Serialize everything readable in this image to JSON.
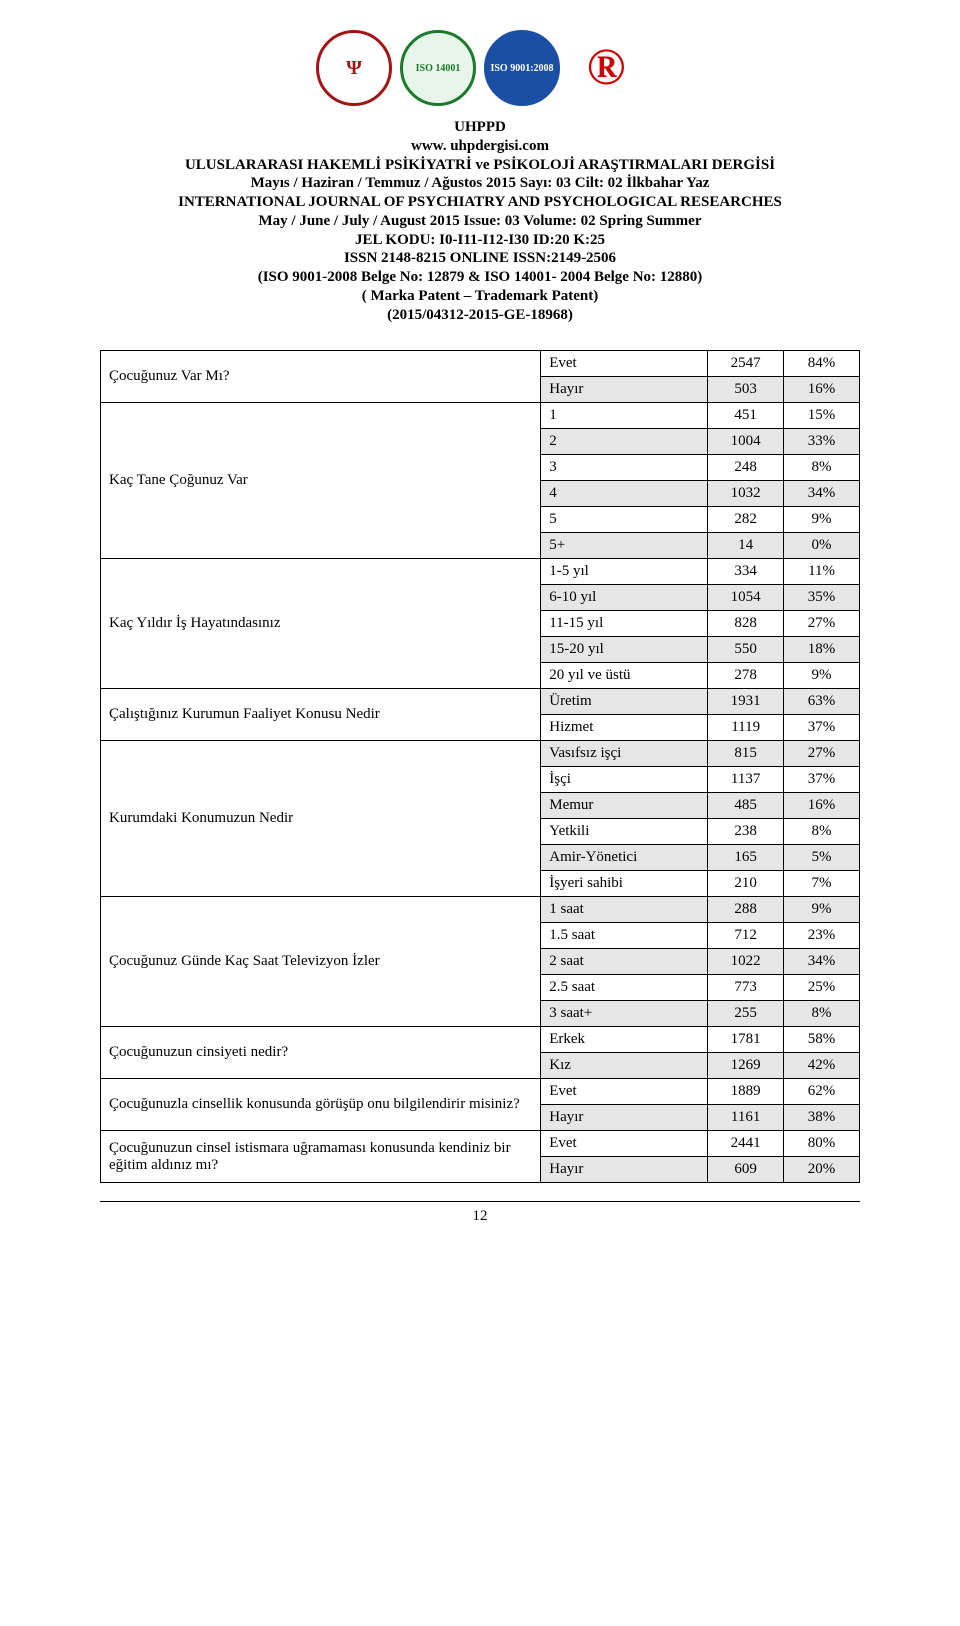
{
  "logos": {
    "uhppd": "Ψ",
    "iso14001": "ISO 14001",
    "iso9001": "ISO 9001:2008",
    "registered": "®"
  },
  "header": {
    "line1": "UHPPD",
    "line2": "www. uhpdergisi.com",
    "line3": "ULUSLARARASI HAKEMLİ PSİKİYATRİ ve PSİKOLOJİ ARAŞTIRMALARI DERGİSİ",
    "line4": "Mayıs / Haziran / Temmuz / Ağustos 2015 Sayı: 03 Cilt: 02 İlkbahar Yaz",
    "line5": "INTERNATIONAL JOURNAL OF PSYCHIATRY AND PSYCHOLOGICAL RESEARCHES",
    "line6": "May / June / July / August 2015 Issue: 03 Volume: 02 Spring Summer",
    "line7": "JEL KODU: I0-I11-I12-I30 ID:20   K:25",
    "line8": "ISSN 2148-8215 ONLINE ISSN:2149-2506",
    "line9": "(ISO 9001-2008 Belge No: 12879 & ISO 14001- 2004 Belge No: 12880)",
    "line10": "( Marka Patent – Trademark Patent)",
    "line11": "(2015/04312-2015-GE-18968)"
  },
  "table": [
    {
      "q": "Çocuğunuz Var Mı?",
      "a": "Evet",
      "n": "2547",
      "p": "84%",
      "shaded": false,
      "qspan": 2
    },
    {
      "a": "Hayır",
      "n": "503",
      "p": "16%",
      "shaded": true
    },
    {
      "q": "Kaç Tane Çoğunuz Var",
      "a": "1",
      "n": "451",
      "p": "15%",
      "shaded": false,
      "qspan": 6
    },
    {
      "a": "2",
      "n": "1004",
      "p": "33%",
      "shaded": true
    },
    {
      "a": "3",
      "n": "248",
      "p": "8%",
      "shaded": false
    },
    {
      "a": "4",
      "n": "1032",
      "p": "34%",
      "shaded": true
    },
    {
      "a": "5",
      "n": "282",
      "p": "9%",
      "shaded": false
    },
    {
      "a": "5+",
      "n": "14",
      "p": "0%",
      "shaded": true
    },
    {
      "q": "Kaç Yıldır İş Hayatındasınız",
      "a": "1-5 yıl",
      "n": "334",
      "p": "11%",
      "shaded": false,
      "qspan": 5
    },
    {
      "a": "6-10 yıl",
      "n": "1054",
      "p": "35%",
      "shaded": true
    },
    {
      "a": "11-15 yıl",
      "n": "828",
      "p": "27%",
      "shaded": false
    },
    {
      "a": "15-20 yıl",
      "n": "550",
      "p": "18%",
      "shaded": true
    },
    {
      "a": "20 yıl ve üstü",
      "n": "278",
      "p": "9%",
      "shaded": false
    },
    {
      "q": "Çalıştığınız Kurumun Faaliyet Konusu Nedir",
      "a": "Üretim",
      "n": "1931",
      "p": "63%",
      "shaded": true,
      "qspan": 2
    },
    {
      "a": "Hizmet",
      "n": "1119",
      "p": "37%",
      "shaded": false
    },
    {
      "q": "Kurumdaki Konumuzun Nedir",
      "a": "Vasıfsız işçi",
      "n": "815",
      "p": "27%",
      "shaded": true,
      "qspan": 6
    },
    {
      "a": "İşçi",
      "n": "1137",
      "p": "37%",
      "shaded": false
    },
    {
      "a": "Memur",
      "n": "485",
      "p": "16%",
      "shaded": true
    },
    {
      "a": "Yetkili",
      "n": "238",
      "p": "8%",
      "shaded": false
    },
    {
      "a": "Amir-Yönetici",
      "n": "165",
      "p": "5%",
      "shaded": true
    },
    {
      "a": "İşyeri sahibi",
      "n": "210",
      "p": "7%",
      "shaded": false
    },
    {
      "q": "Çocuğunuz Günde Kaç Saat Televizyon İzler",
      "a": "1 saat",
      "n": "288",
      "p": "9%",
      "shaded": true,
      "qspan": 5
    },
    {
      "a": "1.5 saat",
      "n": "712",
      "p": "23%",
      "shaded": false
    },
    {
      "a": "2 saat",
      "n": "1022",
      "p": "34%",
      "shaded": true
    },
    {
      "a": "2.5 saat",
      "n": "773",
      "p": "25%",
      "shaded": false
    },
    {
      "a": "3 saat+",
      "n": "255",
      "p": "8%",
      "shaded": true
    },
    {
      "q": "Çocuğunuzun cinsiyeti nedir?",
      "a": "Erkek",
      "n": "1781",
      "p": "58%",
      "shaded": false,
      "qspan": 2
    },
    {
      "a": "Kız",
      "n": "1269",
      "p": "42%",
      "shaded": true
    },
    {
      "q": "Çocuğunuzla cinsellik konusunda görüşüp onu bilgilendirir misiniz?",
      "a": "Evet",
      "n": "1889",
      "p": "62%",
      "shaded": false,
      "qspan": 2
    },
    {
      "a": "Hayır",
      "n": "1161",
      "p": "38%",
      "shaded": true
    },
    {
      "q": "Çocuğunuzun cinsel istismara uğramaması konusunda kendiniz bir eğitim aldınız mı?",
      "a": "Evet",
      "n": "2441",
      "p": "80%",
      "shaded": false,
      "qspan": 2
    },
    {
      "a": "Hayır",
      "n": "609",
      "p": "20%",
      "shaded": true
    }
  ],
  "page_number": "12"
}
